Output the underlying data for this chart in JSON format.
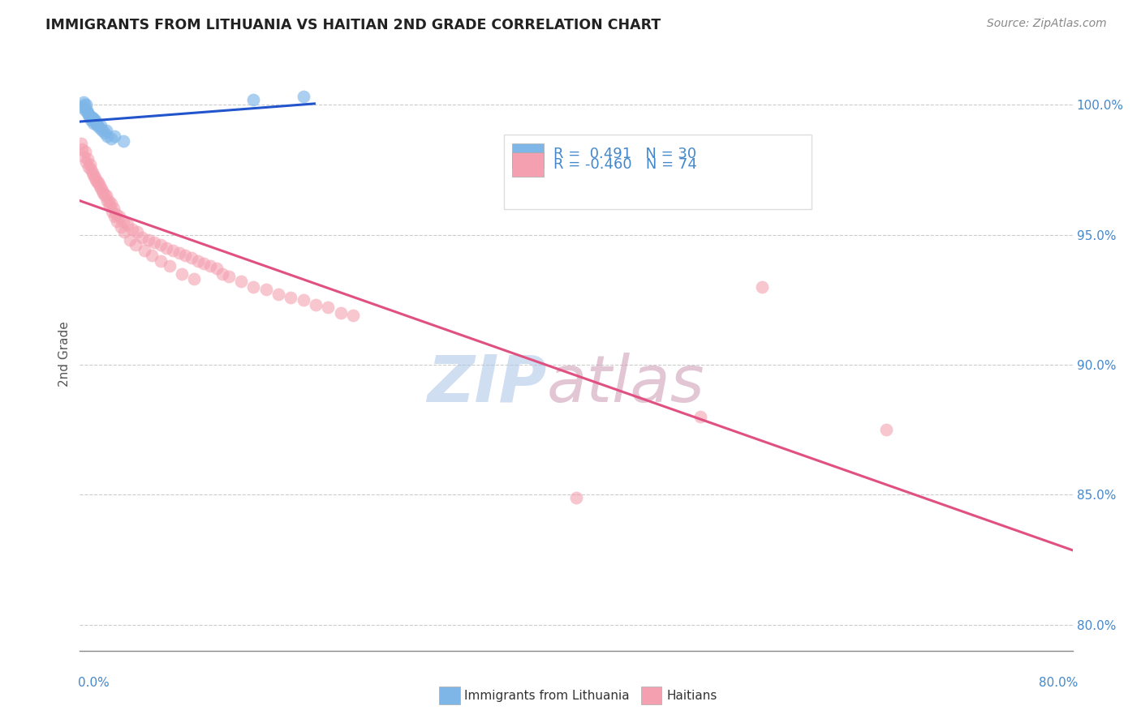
{
  "title": "IMMIGRANTS FROM LITHUANIA VS HAITIAN 2ND GRADE CORRELATION CHART",
  "source_text": "Source: ZipAtlas.com",
  "ylabel": "2nd Grade",
  "ytick_values": [
    80.0,
    85.0,
    90.0,
    95.0,
    100.0
  ],
  "xlim": [
    0.0,
    80.0
  ],
  "ylim": [
    79.0,
    101.8
  ],
  "blue_r": "0.491",
  "blue_n": "30",
  "pink_r": "-0.460",
  "pink_n": "74",
  "legend_label_blue": "Immigrants from Lithuania",
  "legend_label_pink": "Haitians",
  "blue_color": "#7EB6E8",
  "pink_color": "#F4A0B0",
  "blue_line_color": "#2255CC",
  "pink_line_color": "#E05080",
  "axis_label_color": "#4488CC",
  "title_color": "#222222",
  "source_color": "#888888",
  "watermark_ZIP_color": "#B0C8E8",
  "watermark_atlas_color": "#D0A0B8",
  "grid_color": "#CCCCCC",
  "blue_scatter_x": [
    0.2,
    0.3,
    0.4,
    0.5,
    0.6,
    0.7,
    0.8,
    0.9,
    1.0,
    1.1,
    1.2,
    1.3,
    1.4,
    1.6,
    1.8,
    2.0,
    2.2,
    2.5,
    0.35,
    0.55,
    0.75,
    0.95,
    1.15,
    1.35,
    1.7,
    2.1,
    2.8,
    3.5,
    14.0,
    18.0
  ],
  "blue_scatter_y": [
    99.9,
    100.1,
    99.8,
    100.0,
    99.7,
    99.6,
    99.5,
    99.4,
    99.5,
    99.3,
    99.4,
    99.3,
    99.2,
    99.1,
    99.0,
    98.9,
    98.8,
    98.7,
    100.0,
    99.8,
    99.6,
    99.5,
    99.4,
    99.3,
    99.2,
    99.0,
    98.8,
    98.6,
    100.2,
    100.3
  ],
  "pink_scatter_x": [
    0.1,
    0.2,
    0.3,
    0.5,
    0.7,
    0.9,
    1.1,
    1.3,
    1.5,
    1.7,
    1.9,
    2.1,
    2.3,
    2.5,
    2.7,
    2.9,
    3.2,
    3.5,
    3.8,
    4.2,
    4.6,
    5.0,
    5.5,
    6.0,
    6.5,
    7.0,
    7.5,
    8.0,
    8.5,
    9.0,
    9.5,
    10.0,
    10.5,
    11.0,
    11.5,
    12.0,
    13.0,
    14.0,
    15.0,
    16.0,
    17.0,
    18.0,
    19.0,
    20.0,
    21.0,
    22.0,
    0.4,
    0.6,
    0.8,
    1.0,
    1.2,
    1.4,
    1.6,
    1.8,
    2.0,
    2.2,
    2.4,
    2.6,
    2.8,
    3.0,
    3.3,
    3.6,
    4.0,
    4.5,
    5.2,
    5.8,
    6.5,
    7.2,
    8.2,
    9.2,
    40.0,
    50.0,
    55.0,
    65.0
  ],
  "pink_scatter_y": [
    98.5,
    98.3,
    98.0,
    97.8,
    97.6,
    97.5,
    97.3,
    97.1,
    97.0,
    96.8,
    96.6,
    96.5,
    96.3,
    96.2,
    96.0,
    95.8,
    95.7,
    95.5,
    95.4,
    95.2,
    95.1,
    94.9,
    94.8,
    94.7,
    94.6,
    94.5,
    94.4,
    94.3,
    94.2,
    94.1,
    94.0,
    93.9,
    93.8,
    93.7,
    93.5,
    93.4,
    93.2,
    93.0,
    92.9,
    92.7,
    92.6,
    92.5,
    92.3,
    92.2,
    92.0,
    91.9,
    98.2,
    97.9,
    97.7,
    97.4,
    97.2,
    97.0,
    96.9,
    96.7,
    96.5,
    96.3,
    96.1,
    95.9,
    95.7,
    95.5,
    95.3,
    95.1,
    94.8,
    94.6,
    94.4,
    94.2,
    94.0,
    93.8,
    93.5,
    93.3,
    84.9,
    88.0,
    93.0,
    87.5
  ]
}
